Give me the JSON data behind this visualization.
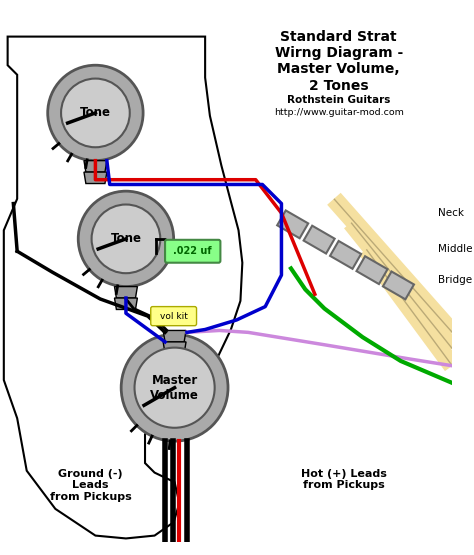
{
  "title_lines": [
    "Standard Strat",
    "Wirng Diagram -",
    "Master Volume,",
    "2 Tones"
  ],
  "subtitle1": "Rothstein Guitars",
  "subtitle2": "http://www.guitar-mod.com",
  "bg_color": "#ffffff",
  "pot_color": "#aaaaaa",
  "pot_edge": "#555555",
  "pot_inner": "#cccccc",
  "wire_red": "#dd0000",
  "wire_blue": "#0000cc",
  "wire_green": "#00aa00",
  "wire_black": "#000000",
  "wire_purple": "#cc88dd",
  "cap_color": "#88ff88",
  "cap_text": "#006600",
  "volkit_bg": "#ffff88",
  "pickup_color": "#f5e0a0",
  "label_tone": "Tone",
  "label_master": "Master\nVolume",
  "label_neck": "Neck",
  "label_middle": "Middle",
  "label_bridge": "Bridge",
  "label_ground": "Ground (-)\nLeads\nfrom Pickups",
  "label_hot": "Hot (+) Leads\nfrom Pickups",
  "label_volkit": "vol kit",
  "label_cap": ".022 uf"
}
